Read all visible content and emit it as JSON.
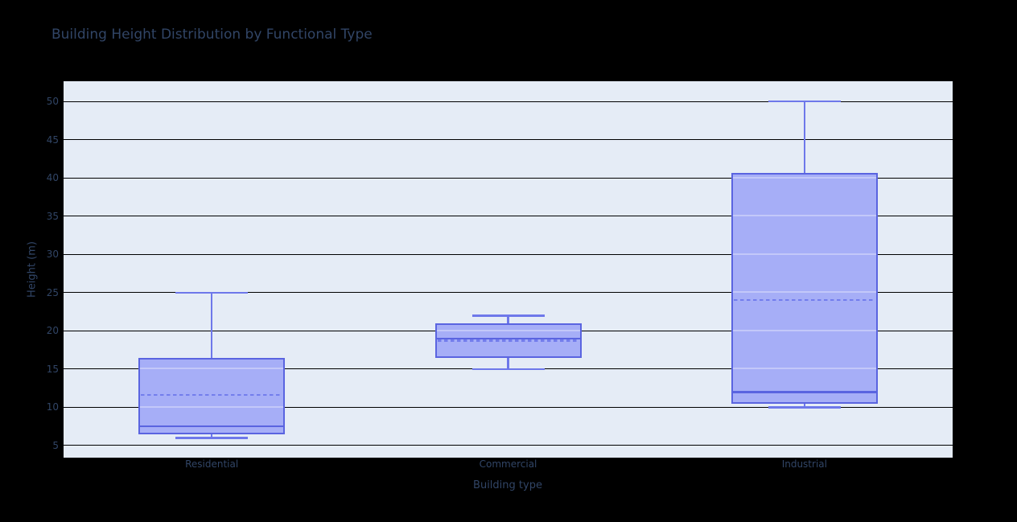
{
  "title": "Building Height Distribution by Functional Type",
  "axes": {
    "x_title": "Building type",
    "y_title": "Height (m)"
  },
  "chart_data": {
    "type": "box",
    "title": "Building Height Distribution by Functional Type",
    "xlabel": "Building type",
    "ylabel": "Height (m)",
    "categories": [
      "Residential",
      "Commercial",
      "Industrial"
    ],
    "yticks": [
      5,
      10,
      15,
      20,
      25,
      30,
      35,
      40,
      45,
      50
    ],
    "ylim": [
      3.42,
      52.63
    ],
    "grid": true,
    "legend": false,
    "mean_line_style": "dashed",
    "series": [
      {
        "name": "Residential",
        "min": 6,
        "q1": 6.5,
        "median": 7.5,
        "mean": 11.6,
        "q3": 16.5,
        "max": 25
      },
      {
        "name": "Commercial",
        "min": 15,
        "q1": 16.5,
        "median": 19,
        "mean": 18.7,
        "q3": 21,
        "max": 22
      },
      {
        "name": "Industrial",
        "min": 10,
        "q1": 10.5,
        "median": 12,
        "mean": 24,
        "q3": 40.6,
        "max": 50
      }
    ]
  },
  "colors": {
    "page_bg": "#000000",
    "plot_bg": "#e5ecf6",
    "grid": "#000000",
    "box_fill": "#a6aef7",
    "box_line": "#5a64e0",
    "whisker_line": "#6e78ea",
    "mean_line": "#737dec",
    "text": "#314566"
  }
}
